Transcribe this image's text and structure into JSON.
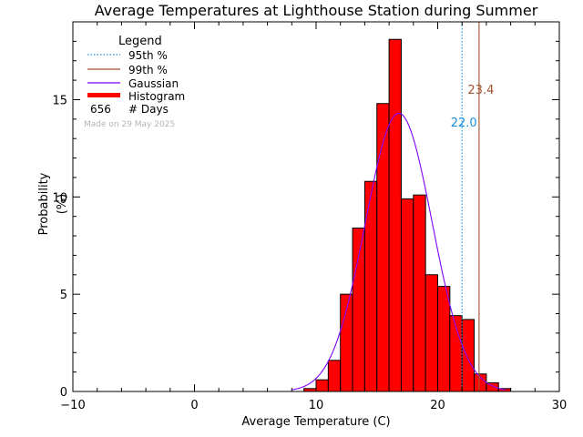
{
  "chart_data": {
    "type": "bar",
    "title": "Average Temperatures at Lighthouse Station during Summer",
    "xlabel": "Average Temperature (C)",
    "ylabel_lines": [
      "Probability",
      "(%)"
    ],
    "xlim": [
      -10,
      30
    ],
    "ylim": [
      0,
      19
    ],
    "xticks": [
      -10,
      0,
      10,
      20,
      30
    ],
    "yticks": [
      0,
      5,
      10,
      15
    ],
    "histogram": {
      "name": "Histogram",
      "color": "#ff0000",
      "bin_width": 1,
      "bin_starts": [
        9,
        10,
        11,
        12,
        13,
        14,
        15,
        16,
        17,
        18,
        19,
        20,
        21,
        22,
        23,
        24,
        25
      ],
      "values": [
        0.15,
        0.6,
        1.6,
        5.0,
        8.4,
        10.8,
        14.8,
        18.1,
        9.9,
        10.1,
        6.0,
        5.4,
        3.9,
        3.7,
        0.9,
        0.45,
        0.15
      ]
    },
    "gaussian": {
      "name": "Gaussian",
      "color": "#8000ff",
      "mean": 16.8,
      "sigma": 2.75,
      "peak": 14.3
    },
    "percentile_lines": [
      {
        "name": "95th %",
        "value": 22.0,
        "label": "22.0",
        "color": "#1a8fe0",
        "style": "dotted"
      },
      {
        "name": "99th %",
        "value": 23.4,
        "label": "23.4",
        "color": "#a0522d",
        "style": "solid"
      }
    ],
    "legend": {
      "title": "Legend",
      "position": "top-left",
      "entries": [
        "95th %",
        "99th %",
        "Gaussian",
        "Histogram"
      ],
      "count": "656",
      "count_label": "# Days"
    },
    "annotation": "Made on 29 May 2025"
  }
}
